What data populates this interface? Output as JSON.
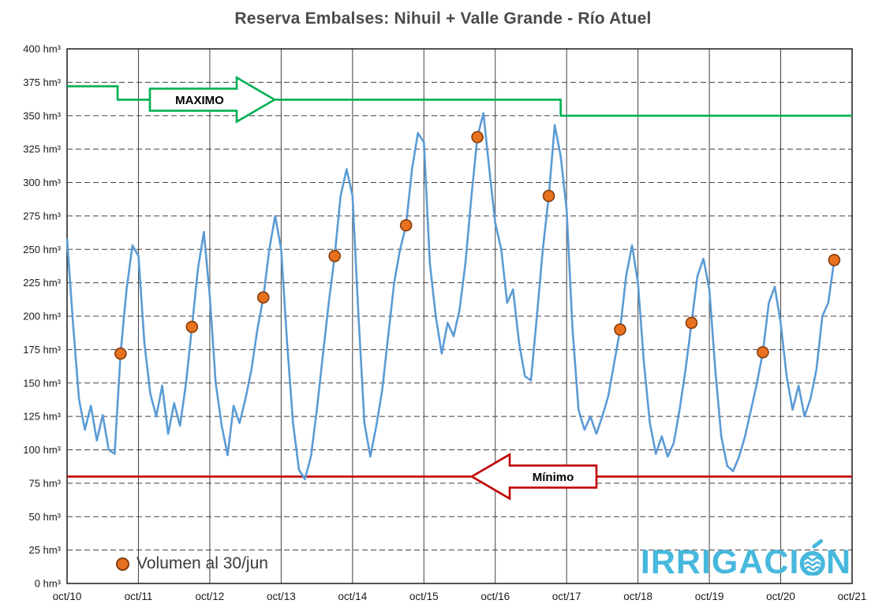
{
  "title": "Reserva Embalses: Nihuil + Valle Grande - Río Atuel",
  "legend": {
    "label": "Volumen al 30/jun"
  },
  "logo": {
    "part1": "IRRIGACI",
    "part2": "N",
    "color": "#47b8dd"
  },
  "colors": {
    "series": "#5B9BD5",
    "dot_fill": "#E8711F",
    "dot_stroke": "#843C0C",
    "maximo": "#00B050",
    "minimo": "#C00000",
    "grid": "#404040",
    "axis_text": "#1a1a1a",
    "title_text": "#4a4a4a"
  },
  "chart_data": {
    "type": "line",
    "title": "Reserva Embalses: Nihuil + Valle Grande - Río Atuel",
    "ylim": [
      0,
      400
    ],
    "y_tick_step": 25,
    "y_tick_label_suffix": " hm³",
    "x_tick_labels": [
      "oct/10",
      "oct/11",
      "oct/12",
      "oct/13",
      "oct/14",
      "oct/15",
      "oct/16",
      "oct/17",
      "oct/18",
      "oct/19",
      "oct/20",
      "oct/21"
    ],
    "x_tick_months": [
      0,
      12,
      24,
      36,
      48,
      60,
      72,
      84,
      96,
      108,
      120,
      132
    ],
    "grid": "horizontal-dashed, vertical-solid-at-years",
    "series": {
      "sampling": "monthly from oct/10 to 30/jun/21",
      "values": [
        258,
        195,
        138,
        115,
        133,
        107,
        126,
        100,
        97,
        172,
        220,
        253,
        245,
        180,
        142,
        125,
        148,
        112,
        135,
        118,
        150,
        192,
        235,
        263,
        215,
        150,
        118,
        96,
        133,
        120,
        138,
        160,
        190,
        214,
        250,
        275,
        250,
        180,
        120,
        85,
        78,
        95,
        130,
        170,
        210,
        245,
        290,
        310,
        290,
        200,
        120,
        95,
        118,
        145,
        185,
        225,
        250,
        268,
        310,
        337,
        330,
        240,
        200,
        172,
        195,
        185,
        205,
        240,
        290,
        334,
        352,
        310,
        270,
        250,
        210,
        220,
        180,
        155,
        152,
        200,
        250,
        290,
        343,
        320,
        280,
        190,
        130,
        115,
        125,
        112,
        125,
        140,
        165,
        190,
        230,
        253,
        225,
        165,
        120,
        97,
        110,
        95,
        105,
        130,
        160,
        195,
        230,
        243,
        220,
        160,
        110,
        88,
        84,
        95,
        110,
        130,
        150,
        173,
        210,
        222,
        195,
        155,
        130,
        148,
        125,
        138,
        160,
        200,
        210,
        242
      ]
    },
    "volumen_30jun": {
      "label": "Volumen al 30/jun",
      "months": [
        9,
        21,
        33,
        45,
        57,
        69,
        81,
        93,
        105,
        117,
        129
      ],
      "values": [
        172,
        192,
        214,
        245,
        268,
        334,
        290,
        190,
        195,
        173,
        242
      ]
    },
    "maximo_line": {
      "label": "MAXIMO",
      "color": "#00B050",
      "segments": [
        {
          "start_month": 0,
          "end_month": 8.5,
          "value": 372
        },
        {
          "start_month": 8.5,
          "end_month": 83,
          "value": 362
        },
        {
          "start_month": 83,
          "end_month": 132,
          "value": 350
        }
      ]
    },
    "minimo_line": {
      "label": "Mínimo",
      "color": "#C00000",
      "value": 80,
      "start_month": 0,
      "end_month": 132
    }
  }
}
